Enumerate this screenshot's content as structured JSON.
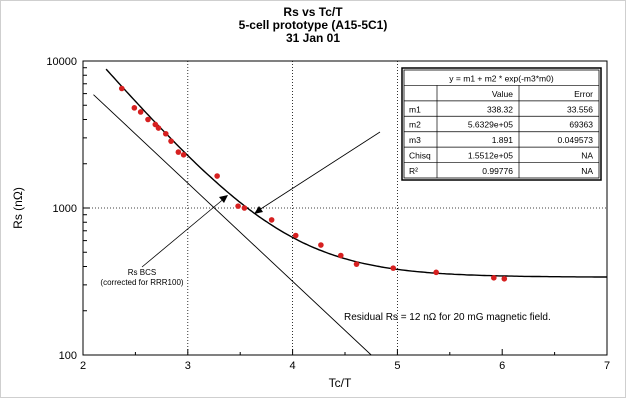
{
  "chart_data": {
    "type": "scatter",
    "title": "Rs vs Tc/T",
    "subtitle": "5-cell prototype (A15-5C1)",
    "date": "31 Jan 01",
    "xlabel": "Tc/T",
    "ylabel": "Rs (nΩ)",
    "xlim": [
      2,
      7
    ],
    "ylim": [
      100,
      10000
    ],
    "yscale": "log",
    "xticks": [
      "2",
      "3",
      "4",
      "5",
      "6",
      "7"
    ],
    "yticks": [
      "100",
      "1000",
      "10000"
    ],
    "grid": "dotted at x=3,4,5 and y=1000",
    "series": [
      {
        "kind": "points",
        "color": "#d62020",
        "x": [
          2.37,
          2.49,
          2.55,
          2.62,
          2.69,
          2.72,
          2.79,
          2.84,
          2.91,
          2.96,
          3.28,
          3.48,
          3.54,
          3.8,
          4.03,
          4.27,
          4.46,
          4.61,
          4.96,
          5.37,
          5.92,
          6.02
        ],
        "y": [
          6500,
          4800,
          4500,
          4000,
          3700,
          3500,
          3200,
          2850,
          2400,
          2300,
          1650,
          1030,
          1000,
          830,
          650,
          560,
          475,
          415,
          390,
          365,
          335,
          330
        ]
      },
      {
        "kind": "fit",
        "label": "y = m1 + m2 * exp(-m3*m0)",
        "m1": 338.32,
        "m2": 563290,
        "m3": 1.891,
        "x_range": [
          2.22,
          7
        ]
      },
      {
        "kind": "bcs",
        "label": "Rs BCS (corrected for RRR100)",
        "x": [
          2.1,
          4.75
        ],
        "y": [
          5900,
          100
        ]
      }
    ],
    "annotations": {
      "bcs_label_line1": "Rs BCS",
      "bcs_label_line2": "(corrected for RRR100)",
      "residual": "Residual Rs = 12 nΩ for 20 mG magnetic field."
    },
    "fit_table": {
      "equation": "y = m1 + m2 * exp(-m3*m0)",
      "headers": [
        "",
        "Value",
        "Error"
      ],
      "rows": [
        [
          "m1",
          "338.32",
          "33.556"
        ],
        [
          "m2",
          "5.6329e+05",
          "69363"
        ],
        [
          "m3",
          "1.891",
          "0.049573"
        ],
        [
          "Chisq",
          "1.5512e+05",
          "NA"
        ],
        [
          "R²",
          "0.99776",
          "NA"
        ]
      ]
    }
  }
}
